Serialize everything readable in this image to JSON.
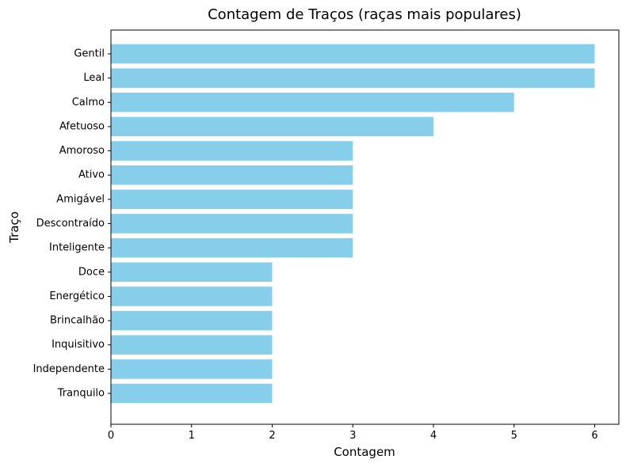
{
  "chart_data": {
    "type": "bar",
    "orientation": "horizontal",
    "title": "Contagem de Traços (raças mais populares)",
    "xlabel": "Contagem",
    "ylabel": "Traço",
    "categories": [
      "Gentil",
      "Leal",
      "Calmo",
      "Afetuoso",
      "Amoroso",
      "Ativo",
      "Amigável",
      "Descontraído",
      "Inteligente",
      "Doce",
      "Energético",
      "Brincalhão",
      "Inquisitivo",
      "Independente",
      "Tranquilo"
    ],
    "values": [
      6,
      6,
      5,
      4,
      3,
      3,
      3,
      3,
      3,
      2,
      2,
      2,
      2,
      2,
      2
    ],
    "xlim": [
      0,
      6.3
    ],
    "xticks": [
      0,
      1,
      2,
      3,
      4,
      5,
      6
    ],
    "grid": false,
    "bar_color": "#87ceeb"
  }
}
